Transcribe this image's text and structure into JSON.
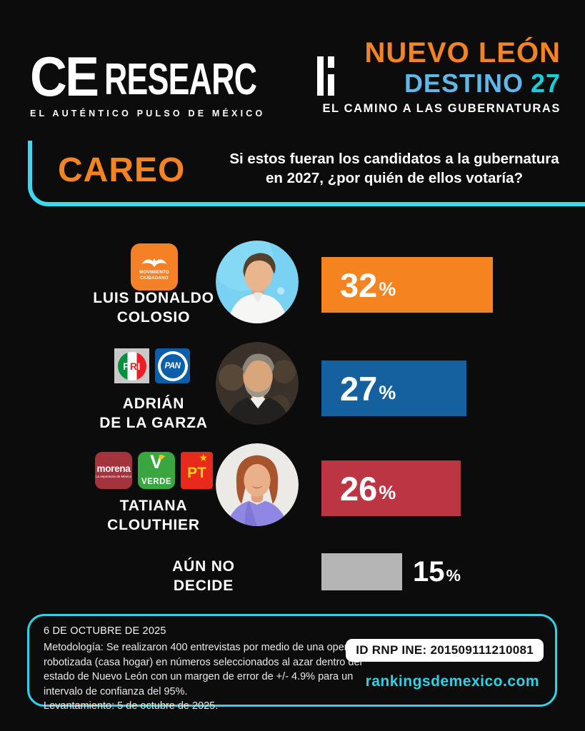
{
  "brand": {
    "name": "CE RESEARCH",
    "logo_prefix": "CE",
    "logo_middle": "RESEARC",
    "tagline": "EL AUTÉNTICO PULSO DE MÉXICO"
  },
  "header": {
    "state": "NUEVO LEÓN",
    "program": "DESTINO",
    "program_number": "27",
    "subtitle": "EL CAMINO A LAS GUBERNATURAS"
  },
  "question_banner": {
    "label": "CAREO",
    "question_line1": "Si estos fueran los candidatos a la gubernatura",
    "question_line2": "en 2027, ¿por quién de ellos votaría?"
  },
  "chart_data": {
    "type": "bar",
    "orientation": "horizontal",
    "title": "CAREO - Si estos fueran los candidatos a la gubernatura en 2027, ¿por quién de ellos votaría?",
    "categories": [
      "LUIS DONALDO COLOSIO",
      "ADRIÁN DE LA GARZA",
      "TATIANA CLOUTHIER",
      "AÚN NO DECIDE"
    ],
    "values": [
      32,
      27,
      26,
      15
    ],
    "unit": "%",
    "xlim": [
      0,
      100
    ],
    "bar_colors": [
      "#F5831F",
      "#15609E",
      "#BC3543",
      "#B5B5B5"
    ],
    "value_label_position": [
      "inside",
      "inside",
      "inside",
      "outside"
    ],
    "parties_per_category": [
      [
        "MOVIMIENTO CIUDADANO"
      ],
      [
        "PRI",
        "PAN"
      ],
      [
        "MORENA",
        "VERDE",
        "PT"
      ],
      []
    ]
  },
  "candidates": [
    {
      "name_line1": "LUIS DONALDO",
      "name_line2": "COLOSIO"
    },
    {
      "name_line1": "ADRIÁN",
      "name_line2": "DE LA GARZA"
    },
    {
      "name_line1": "TATIANA",
      "name_line2": "CLOUTHIER"
    },
    {
      "name_line1": "AÚN NO",
      "name_line2": "DECIDE"
    }
  ],
  "party_logos": {
    "mc_line1": "MOVIMIENTO",
    "mc_line2": "CIUDADANO",
    "pri_p": "P",
    "pri_r": "R",
    "pri_i": "I",
    "pan": "PAN",
    "morena_name": "morena",
    "morena_tagline": "La esperanza de México",
    "verde_letter": "V",
    "verde_name": "VERDE",
    "pt": "PT",
    "pt_star": "★"
  },
  "footer": {
    "date": "6 DE OCTUBRE DE 2025",
    "methodology_lines": [
      "Metodología: Se realizaron 400 entrevistas por medio de una operadora",
      "robotizada (casa hogar) en números seleccionados al azar dentro del",
      "estado de Nuevo León con un margen de error de +/- 4.9% para un",
      "intervalo de confianza del 95%.",
      "Levantamiento: 5 de octubre de 2025."
    ],
    "id_label": "ID RNP INE: 201509111210081",
    "website": "rankingsdemexico.com"
  },
  "colors": {
    "background": "#0c0c0c",
    "accent_orange": "#F5831F",
    "accent_cyan": "#2ED3E8",
    "destino_blue": "#5FB8EA",
    "destino_num_cyan": "#17CFDC",
    "bar_blue": "#15609E",
    "bar_red": "#BC3543",
    "bar_gray": "#B5B5B5"
  }
}
